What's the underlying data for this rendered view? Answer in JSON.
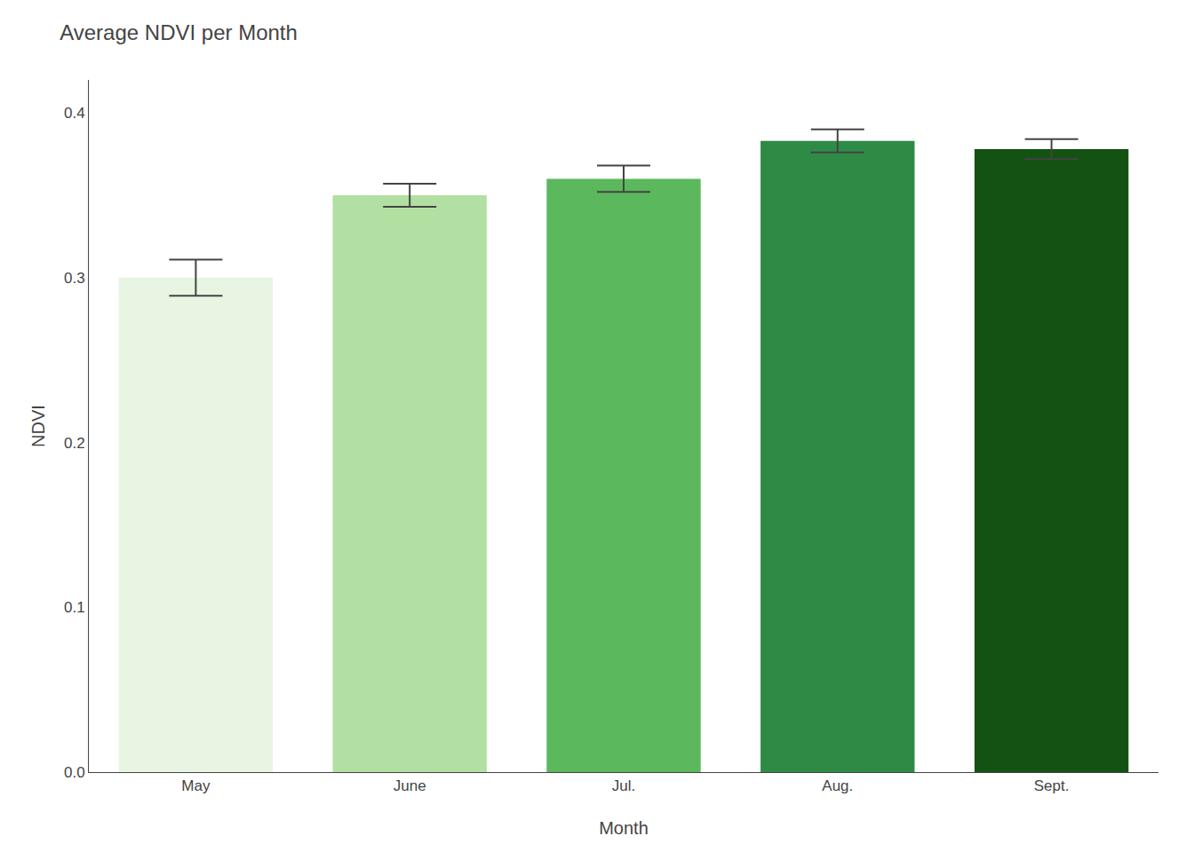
{
  "chart_data": {
    "type": "bar",
    "title": "Average NDVI per Month",
    "xlabel": "Month",
    "ylabel": "NDVI",
    "categories": [
      "May",
      "June",
      "Jul.",
      "Aug.",
      "Sept."
    ],
    "values": [
      0.3,
      0.35,
      0.36,
      0.383,
      0.378
    ],
    "errors": [
      0.011,
      0.007,
      0.008,
      0.007,
      0.006
    ],
    "colors": [
      "#e8f5e2",
      "#b2e0a2",
      "#5cb85c",
      "#2e8b45",
      "#145214"
    ],
    "ylim": [
      0,
      0.42
    ],
    "yticks": [
      {
        "value": 0,
        "label": "0.0"
      },
      0.1,
      0.2,
      0.3,
      0.4
    ],
    "grid": false
  }
}
